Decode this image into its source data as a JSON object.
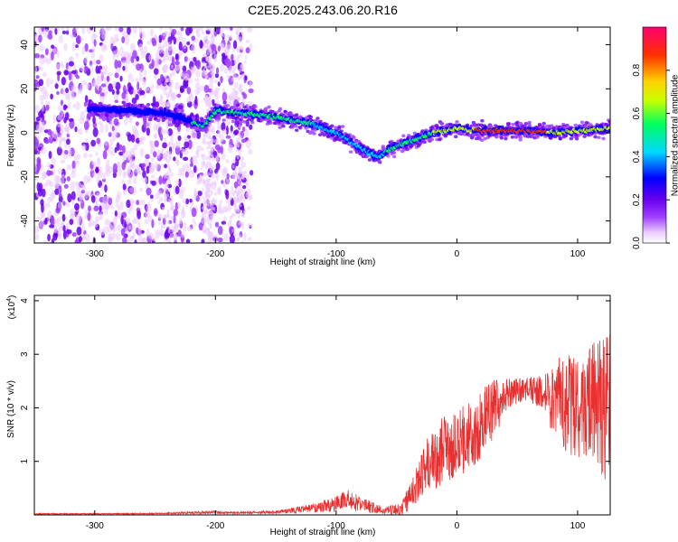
{
  "title": "C2E5.2025.243.06.20.R16",
  "chart_data": [
    {
      "type": "heatmap",
      "xlabel": "Height of straight line (km)",
      "ylabel": "Frequency (Hz)",
      "xlim": [
        -350,
        127
      ],
      "ylim": [
        -50,
        48
      ],
      "x_ticks": [
        -300,
        -200,
        -100,
        0,
        100
      ],
      "y_ticks": [
        -40,
        -20,
        0,
        20,
        40
      ],
      "colorbar": {
        "label": "Normalized spectral amplitude",
        "range": [
          0,
          1
        ],
        "ticks": [
          "0.0",
          "0.2",
          "0.4",
          "0.6",
          "0.8"
        ],
        "colors": [
          "#ffffff",
          "#e9c9ff",
          "#a040ff",
          "#6a00ee",
          "#0000ff",
          "#00d8ff",
          "#00ff60",
          "#c8ff00",
          "#ffd000",
          "#ff3000",
          "#ff0070"
        ]
      },
      "ridge_trace": {
        "x": [
          -300,
          -270,
          -240,
          -225,
          -210,
          -200,
          -180,
          -160,
          -140,
          -120,
          -100,
          -80,
          -65,
          -58,
          -50,
          -40,
          -30,
          -20,
          -10,
          0,
          20,
          40,
          60,
          80,
          100,
          127
        ],
        "frequency": [
          11,
          10,
          9,
          6,
          3,
          10,
          9,
          8,
          6,
          4,
          0,
          -7,
          -11,
          -8,
          -6,
          -4,
          -2,
          0,
          1,
          2,
          1,
          1,
          1,
          0,
          1,
          2
        ]
      }
    },
    {
      "type": "line",
      "xlabel": "Height of straight line (km)",
      "ylabel": "SNR (10 * v/v)",
      "y_multiplier": "(x10",
      "y_multiplier_exp": "4",
      "xlim": [
        -350,
        127
      ],
      "ylim": [
        0,
        4.1
      ],
      "x_ticks": [
        -300,
        -200,
        -100,
        0,
        100
      ],
      "y_ticks": [
        1,
        2,
        3,
        4
      ],
      "color": "#e83030",
      "envelope": {
        "x": [
          -350,
          -300,
          -250,
          -200,
          -190,
          -150,
          -120,
          -100,
          -90,
          -80,
          -60,
          -45,
          -35,
          -25,
          -15,
          0,
          15,
          30,
          45,
          60,
          70,
          80,
          90,
          100,
          110,
          120,
          127
        ],
        "y_mean": [
          0.02,
          0.02,
          0.025,
          0.05,
          0.04,
          0.05,
          0.12,
          0.2,
          0.28,
          0.2,
          0.08,
          0.12,
          0.5,
          0.9,
          1.2,
          1.3,
          1.6,
          2.0,
          2.3,
          2.35,
          2.3,
          2.2,
          2.1,
          2.0,
          2.1,
          2.0,
          2.0
        ],
        "y_spread": [
          0.01,
          0.01,
          0.01,
          0.03,
          0.02,
          0.03,
          0.08,
          0.15,
          0.2,
          0.15,
          0.06,
          0.15,
          0.3,
          0.5,
          0.7,
          0.6,
          0.7,
          0.6,
          0.25,
          0.25,
          0.3,
          0.7,
          0.9,
          1.0,
          1.1,
          1.3,
          1.5
        ]
      }
    }
  ]
}
